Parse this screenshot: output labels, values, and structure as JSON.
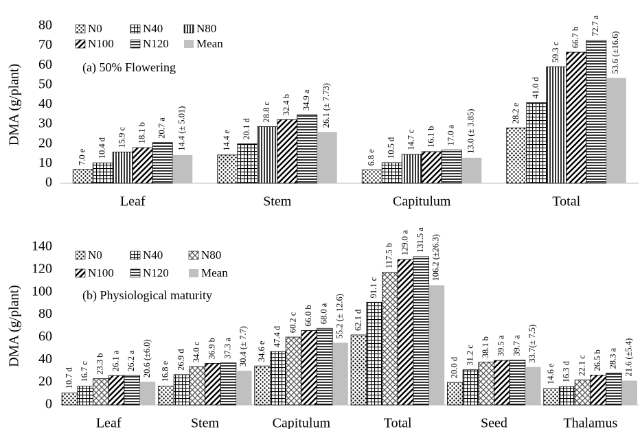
{
  "chart_data": [
    {
      "type": "bar",
      "title": "(a) 50% Flowering",
      "y_label": "DMA (g/plant)",
      "legend": "upper left",
      "categories": [
        "Leaf",
        "Stem",
        "Capitulum",
        "Total"
      ],
      "ylim": [
        0,
        80
      ],
      "yticks": [
        0,
        10,
        20,
        30,
        40,
        50,
        60,
        70,
        80
      ],
      "series": [
        {
          "name": "N0",
          "pattern": "dots",
          "color": "#000000",
          "values": [
            7.0,
            14.4,
            6.8,
            28.2
          ],
          "value_labels": [
            "7.0 e",
            "14.4 e",
            "6.8 e",
            "28.2 e"
          ]
        },
        {
          "name": "N40",
          "pattern": "grid",
          "color": "#000000",
          "values": [
            10.4,
            20.1,
            10.5,
            41.0
          ],
          "value_labels": [
            "10.4 d",
            "20.1 d",
            "10.5 d",
            "41.0 d"
          ]
        },
        {
          "name": "N80",
          "pattern": "vlines",
          "color": "#000000",
          "values": [
            15.9,
            28.8,
            14.7,
            59.3
          ],
          "value_labels": [
            "15.9 c",
            "28.8 c",
            "14.7 c",
            "59.3 c"
          ]
        },
        {
          "name": "N100",
          "pattern": "diag",
          "color": "#000000",
          "values": [
            18.1,
            32.4,
            16.1,
            66.7
          ],
          "value_labels": [
            "18.1 b",
            "32.4 b",
            "16.1 b",
            "66.7 b"
          ]
        },
        {
          "name": "N120",
          "pattern": "hlines",
          "color": "#000000",
          "values": [
            20.7,
            34.9,
            17.0,
            72.7
          ],
          "value_labels": [
            "20.7 a",
            "34.9 a",
            "17.0 a",
            "72.7 a"
          ]
        },
        {
          "name": "Mean",
          "pattern": "solid",
          "color": "#c0c0c0",
          "values": [
            14.4,
            26.1,
            13.0,
            53.6
          ],
          "value_labels": [
            "14.4 (± 5.01)",
            "26.1 (± 7.73)",
            "13.0 (± 3.85)",
            "53.6 (±16.6)"
          ]
        }
      ]
    },
    {
      "type": "bar",
      "title": "(b) Physiological maturity",
      "y_label": "DMA (g/plant)",
      "legend": "upper left",
      "categories": [
        "Leaf",
        "Stem",
        "Capitulum",
        "Total",
        "Seed",
        "Thalamus"
      ],
      "ylim": [
        0,
        140
      ],
      "yticks": [
        0,
        20,
        40,
        60,
        80,
        100,
        120,
        140
      ],
      "series": [
        {
          "name": "N0",
          "pattern": "dots",
          "color": "#000000",
          "values": [
            10.7,
            16.8,
            34.6,
            62.1,
            20.0,
            14.6
          ],
          "value_labels": [
            "10.7 d",
            "16.8 e",
            "34.6 e",
            "62.1 d",
            "20.0 d",
            "14.6 e"
          ]
        },
        {
          "name": "N40",
          "pattern": "grid",
          "color": "#000000",
          "values": [
            16.7,
            26.9,
            47.4,
            91.1,
            31.2,
            16.3
          ],
          "value_labels": [
            "16.7 c",
            "26.9 d",
            "47.4 d",
            "91.1 c",
            "31.2 c",
            "16.3 d"
          ]
        },
        {
          "name": "N80",
          "pattern": "diamond",
          "color": "#000000",
          "values": [
            23.3,
            34.0,
            60.2,
            117.5,
            38.1,
            22.1
          ],
          "value_labels": [
            "23.3 b",
            "34.0 c",
            "60.2 c",
            "117.5 b",
            "38.1 b",
            "22.1 c"
          ]
        },
        {
          "name": "N100",
          "pattern": "diag",
          "color": "#000000",
          "values": [
            26.1,
            36.9,
            66.0,
            129.0,
            39.5,
            26.5
          ],
          "value_labels": [
            "26.1 a",
            "36.9 b",
            "66.0 b",
            "129.0 a",
            "39.5 a",
            "26.5 b"
          ]
        },
        {
          "name": "N120",
          "pattern": "hlines",
          "color": "#000000",
          "values": [
            26.2,
            37.3,
            68.0,
            131.5,
            39.7,
            28.3
          ],
          "value_labels": [
            "26.2 a",
            "37.3 a",
            "68.0 a",
            "131.5 a",
            "39.7 a",
            "28.3 a"
          ]
        },
        {
          "name": "Mean",
          "pattern": "solid",
          "color": "#c0c0c0",
          "values": [
            20.6,
            30.4,
            55.2,
            106.2,
            33.7,
            21.6
          ],
          "value_labels": [
            "20.6 (±6.0)",
            "30.4 (± 7.7)",
            "55.2 (± 12.6)",
            "106.2 (±26.3)",
            "33.7(± 7.5)",
            "21.6 (±5.4)"
          ]
        }
      ]
    }
  ]
}
